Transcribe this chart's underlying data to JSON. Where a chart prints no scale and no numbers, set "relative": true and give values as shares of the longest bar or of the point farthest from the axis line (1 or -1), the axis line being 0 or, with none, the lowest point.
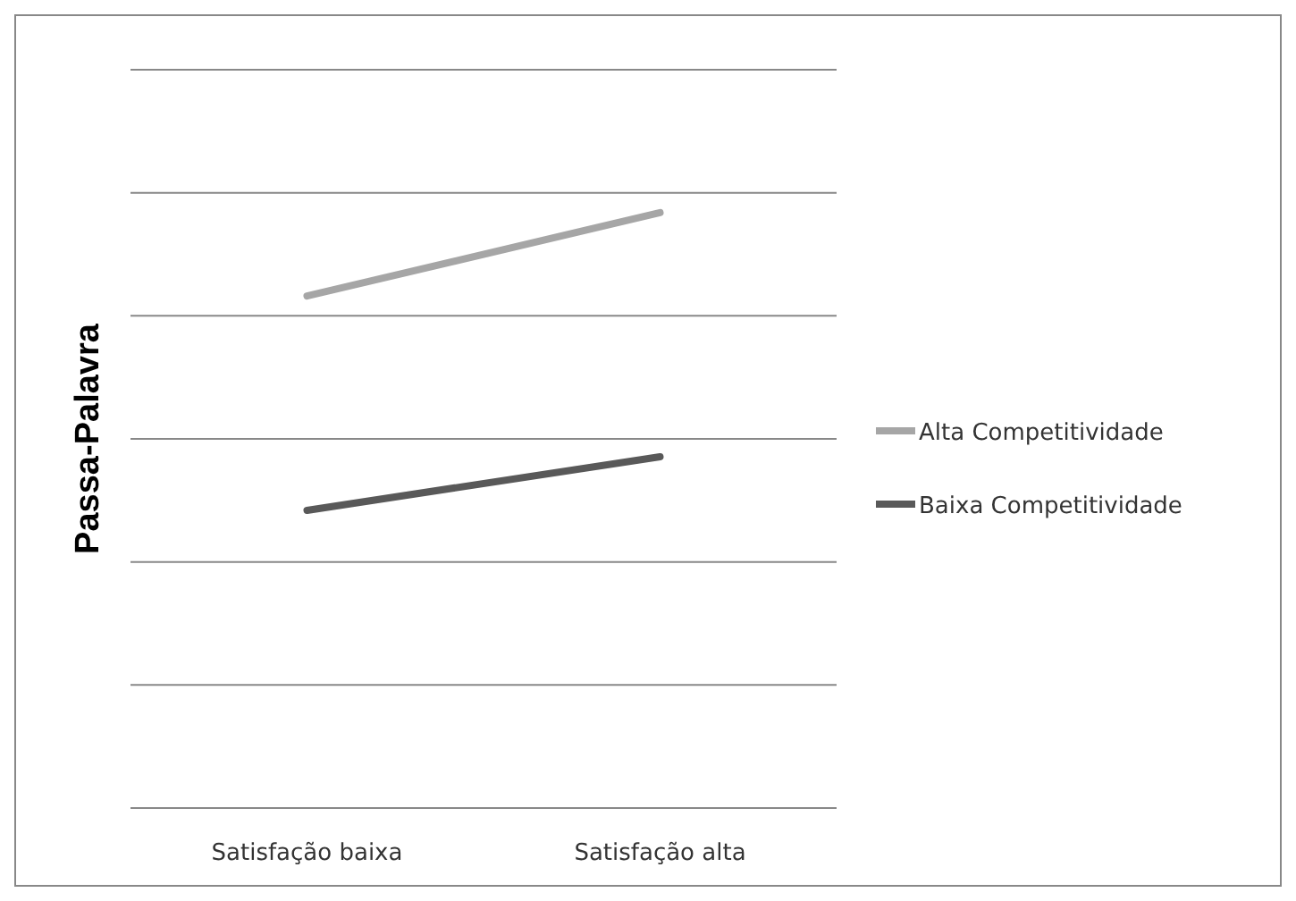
{
  "chart_data": {
    "type": "line",
    "ylabel": "Passa-Palavra",
    "categories": [
      "Satisfação baixa",
      "Satisfação alta"
    ],
    "relative": true,
    "grid": "y",
    "legend": "right",
    "marker": "none",
    "line_style": "solid",
    "series": [
      {
        "name": "Alta Competitividade",
        "color": "#a6a6a6",
        "values": [
          0.86,
          1
        ]
      },
      {
        "name": "Baixa Competitividade",
        "color": "#595959",
        "values": [
          0.5,
          0.59
        ]
      }
    ]
  }
}
